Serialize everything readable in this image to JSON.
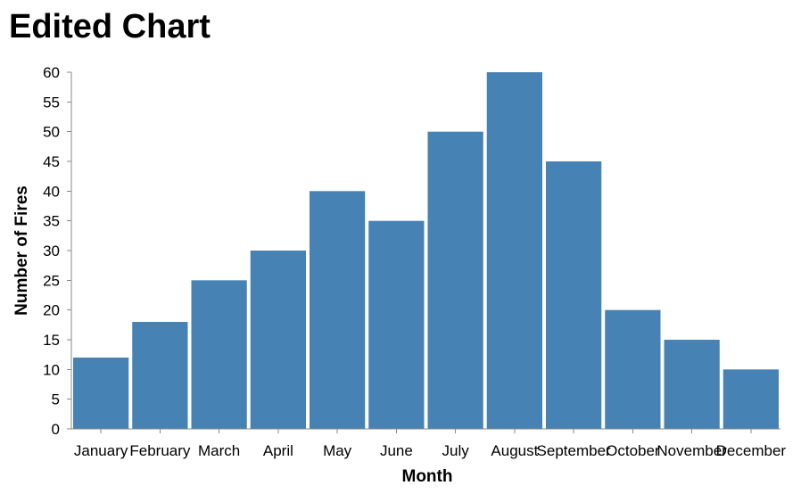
{
  "chart_data": {
    "type": "bar",
    "title": "Edited Chart",
    "xlabel": "Month",
    "ylabel": "Number of Fires",
    "categories": [
      "January",
      "February",
      "March",
      "April",
      "May",
      "June",
      "July",
      "August",
      "September",
      "October",
      "November",
      "December"
    ],
    "values": [
      12,
      18,
      25,
      30,
      40,
      35,
      50,
      60,
      45,
      20,
      15,
      10
    ],
    "ylim": [
      0,
      60
    ],
    "yticks": [
      0,
      5,
      10,
      15,
      20,
      25,
      30,
      35,
      40,
      45,
      50,
      55,
      60
    ],
    "grid": false,
    "colors": {
      "bar": "#4682b4"
    }
  }
}
